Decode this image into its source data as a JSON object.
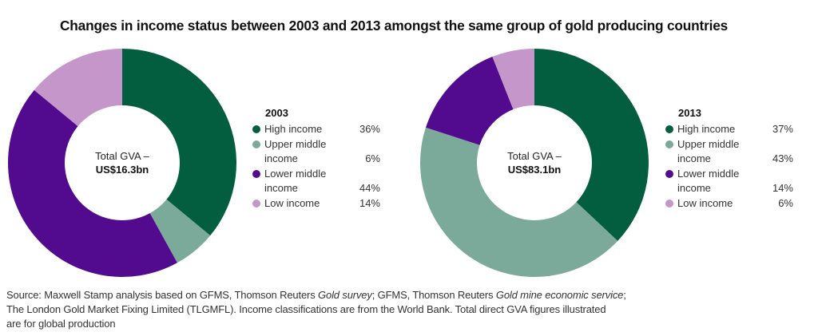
{
  "chart_data": [
    {
      "type": "pie",
      "variant": "donut",
      "title": "2003",
      "center_label": "Total GVA –",
      "center_value": "US$16.3bn",
      "categories": [
        "High income",
        "Upper middle income",
        "Lower middle income",
        "Low income"
      ],
      "values": [
        36,
        6,
        44,
        14
      ],
      "value_labels": [
        "36%",
        "6%",
        "44%",
        "14%"
      ],
      "unit": "%",
      "legend_position": "right"
    },
    {
      "type": "pie",
      "variant": "donut",
      "title": "2013",
      "center_label": "Total GVA –",
      "center_value": "US$83.1bn",
      "categories": [
        "High income",
        "Upper middle income",
        "Lower middle income",
        "Low income"
      ],
      "values": [
        37,
        43,
        14,
        6
      ],
      "value_labels": [
        "37%",
        "43%",
        "14%",
        "6%"
      ],
      "unit": "%",
      "legend_position": "right"
    }
  ],
  "title": "Changes in income status between 2003 and 2013 amongst the same group of gold producing countries",
  "legend": {
    "labels": [
      [
        "High income"
      ],
      [
        "Upper middle",
        "income"
      ],
      [
        "Lower middle",
        "income"
      ],
      [
        "Low income"
      ]
    ]
  },
  "colors": {
    "high_income": "#035e3f",
    "upper_middle_income": "#7ba99a",
    "lower_middle_income": "#520a8e",
    "low_income": "#c596ca"
  },
  "footnote": {
    "line1_a": "Source: Maxwell Stamp analysis based on GFMS, Thomson Reuters ",
    "line1_b": "Gold survey",
    "line1_c": "; GFMS, Thomson Reuters ",
    "line1_d": "Gold mine economic service",
    "line1_e": ";",
    "line2": "The London Gold Market Fixing Limited (TLGMFL). Income classifications are from the World Bank. Total direct GVA figures illustrated",
    "line3": "are for global production"
  }
}
